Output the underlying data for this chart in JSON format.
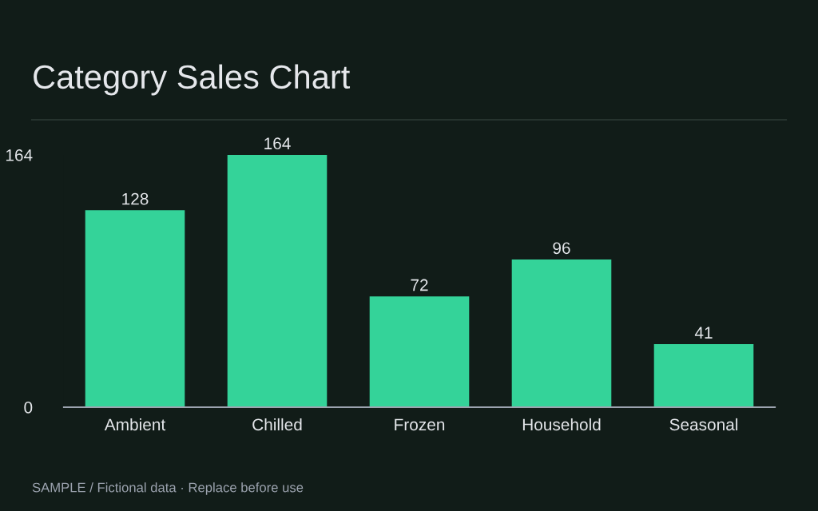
{
  "chart_data": {
    "type": "bar",
    "title": "Category Sales Chart",
    "categories": [
      "Ambient",
      "Chilled",
      "Frozen",
      "Household",
      "Seasonal"
    ],
    "values": [
      128,
      164,
      72,
      96,
      41
    ],
    "color": "#34d399",
    "ylim": [
      0,
      164
    ],
    "yticks": [
      0,
      164
    ],
    "grid": false,
    "data_labels": true,
    "annotations": [
      "SAMPLE / Fictional data · Replace before use"
    ]
  }
}
